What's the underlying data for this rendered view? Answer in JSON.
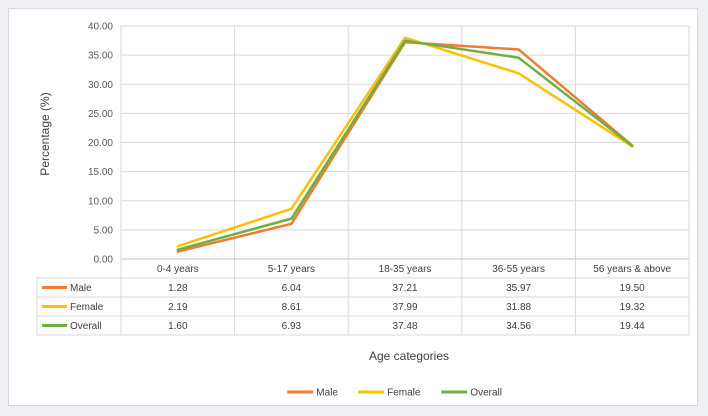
{
  "chart_data": {
    "type": "line",
    "xlabel": "Age categories",
    "ylabel": "Percentage (%)",
    "ylim": [
      0,
      40
    ],
    "yticks": [
      "0.00",
      "5.00",
      "10.00",
      "15.00",
      "20.00",
      "25.00",
      "30.00",
      "35.00",
      "40.00"
    ],
    "grid": true,
    "legend_position": "bottom",
    "data_table": true,
    "categories": [
      "0-4 years",
      "5-17 years",
      "18-35 years",
      "36-55 years",
      "56 years & above"
    ],
    "series": [
      {
        "name": "Male",
        "color": "#ed7d31",
        "values": [
          1.28,
          6.04,
          37.21,
          35.97,
          19.5
        ],
        "labels": [
          "1.28",
          "6.04",
          "37.21",
          "35.97",
          "19.50"
        ]
      },
      {
        "name": "Female",
        "color": "#ffc000",
        "values": [
          2.19,
          8.61,
          37.99,
          31.88,
          19.32
        ],
        "labels": [
          "2.19",
          "8.61",
          "37.99",
          "31.88",
          "19.32"
        ]
      },
      {
        "name": "Overall",
        "color": "#70ad47",
        "values": [
          1.6,
          6.93,
          37.48,
          34.56,
          19.44
        ],
        "labels": [
          "1.60",
          "6.93",
          "37.48",
          "34.56",
          "19.44"
        ]
      }
    ]
  }
}
